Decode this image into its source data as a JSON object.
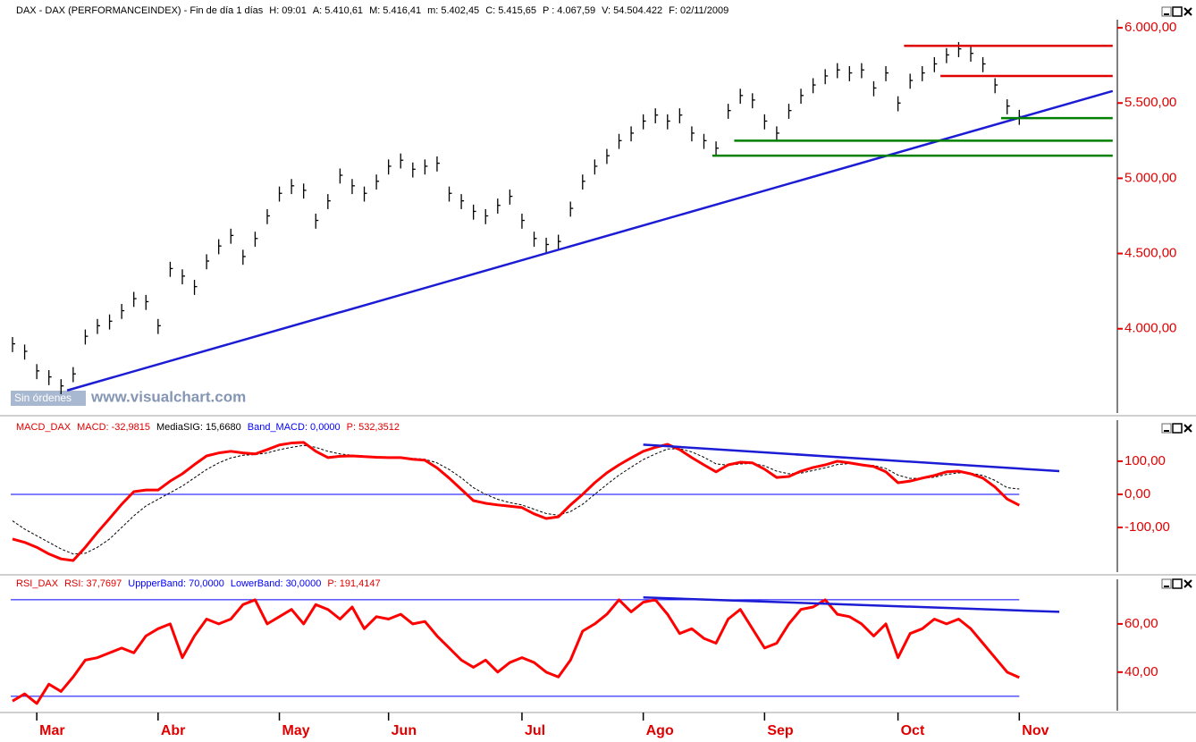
{
  "chart_data": [
    {
      "type": "ohlc",
      "title": "DAX - DAX (PERFORMANCEINDEX) - Fin de día 1 días",
      "title_color": "#000000",
      "fields": [
        {
          "label": "H:",
          "value": "09:01",
          "color": "#000000"
        },
        {
          "label": "A:",
          "value": "5.410,61",
          "color": "#000000"
        },
        {
          "label": "M:",
          "value": "5.416,41",
          "color": "#000000"
        },
        {
          "label": "m:",
          "value": "5.402,45",
          "color": "#000000"
        },
        {
          "label": "C:",
          "value": "5.415,65",
          "color": "#000000"
        },
        {
          "label": "P :",
          "value": "4.067,59",
          "color": "#000000"
        },
        {
          "label": "V:",
          "value": "54.504.422",
          "color": "#000000"
        },
        {
          "label": "F:",
          "value": "02/11/2009",
          "color": "#000000"
        }
      ],
      "categories": [
        null,
        null,
        "Mar",
        null,
        null,
        null,
        null,
        null,
        null,
        null,
        null,
        null,
        "Abr",
        null,
        null,
        null,
        null,
        null,
        null,
        null,
        null,
        null,
        "May",
        null,
        null,
        null,
        null,
        null,
        null,
        null,
        null,
        "Jun",
        null,
        null,
        null,
        null,
        null,
        null,
        null,
        null,
        null,
        null,
        "Jul",
        null,
        null,
        null,
        null,
        null,
        null,
        null,
        null,
        null,
        "Ago",
        null,
        null,
        null,
        null,
        null,
        null,
        null,
        null,
        null,
        "Sep",
        null,
        null,
        null,
        null,
        null,
        null,
        null,
        null,
        null,
        null,
        "Oct",
        null,
        null,
        null,
        null,
        null,
        null,
        null,
        null,
        null,
        "Nov"
      ],
      "high": [
        3945,
        3895,
        3765,
        3725,
        3665,
        3745,
        3995,
        4065,
        4095,
        4165,
        4245,
        4225,
        4065,
        4445,
        4395,
        4325,
        4495,
        4595,
        4665,
        4525,
        4645,
        4795,
        4945,
        4995,
        4965,
        4765,
        4895,
        5065,
        4995,
        4945,
        5025,
        5125,
        5165,
        5105,
        5125,
        5145,
        4945,
        4895,
        4825,
        4795,
        4865,
        4925,
        4765,
        4645,
        4605,
        4625,
        4845,
        5025,
        5125,
        5195,
        5295,
        5345,
        5425,
        5465,
        5425,
        5465,
        5345,
        5295,
        5245,
        5495,
        5595,
        5565,
        5425,
        5345,
        5495,
        5595,
        5665,
        5725,
        5765,
        5745,
        5765,
        5645,
        5745,
        5545,
        5695,
        5745,
        5805,
        5865,
        5905,
        5875,
        5805,
        5665,
        5525,
        5455
      ],
      "low": [
        3845,
        3795,
        3665,
        3625,
        3565,
        3645,
        3895,
        3965,
        3995,
        4065,
        4145,
        4125,
        3965,
        4345,
        4295,
        4225,
        4395,
        4495,
        4565,
        4425,
        4545,
        4695,
        4845,
        4895,
        4865,
        4665,
        4795,
        4965,
        4895,
        4845,
        4925,
        5025,
        5065,
        5005,
        5025,
        5045,
        4845,
        4795,
        4725,
        4695,
        4765,
        4825,
        4665,
        4545,
        4505,
        4525,
        4745,
        4925,
        5025,
        5095,
        5195,
        5245,
        5325,
        5365,
        5325,
        5365,
        5245,
        5195,
        5145,
        5395,
        5495,
        5465,
        5325,
        5245,
        5395,
        5495,
        5565,
        5625,
        5665,
        5645,
        5665,
        5545,
        5645,
        5445,
        5595,
        5645,
        5705,
        5765,
        5805,
        5775,
        5705,
        5565,
        5425,
        5355
      ],
      "close": [
        3900,
        3850,
        3720,
        3680,
        3620,
        3700,
        3950,
        4020,
        4050,
        4120,
        4200,
        4180,
        4020,
        4400,
        4350,
        4280,
        4450,
        4550,
        4620,
        4480,
        4600,
        4750,
        4900,
        4950,
        4920,
        4720,
        4850,
        5020,
        4950,
        4900,
        4980,
        5080,
        5120,
        5060,
        5080,
        5100,
        4900,
        4850,
        4780,
        4750,
        4820,
        4880,
        4720,
        4600,
        4560,
        4580,
        4800,
        4980,
        5080,
        5150,
        5250,
        5300,
        5380,
        5420,
        5380,
        5420,
        5300,
        5250,
        5200,
        5450,
        5550,
        5520,
        5380,
        5300,
        5450,
        5550,
        5620,
        5680,
        5720,
        5700,
        5720,
        5600,
        5700,
        5500,
        5650,
        5700,
        5760,
        5820,
        5860,
        5830,
        5760,
        5620,
        5480,
        5410
      ],
      "color": "#000000",
      "axis_color": "#e00000",
      "ylim": [
        3440,
        6054
      ],
      "yticks": [
        {
          "value": 6000,
          "label": "6.000,00"
        },
        {
          "value": 5500,
          "label": "5.500,00"
        },
        {
          "value": 5000,
          "label": "5.000,00"
        },
        {
          "value": 4500,
          "label": "4.500,00"
        },
        {
          "value": 4000,
          "label": "4.000,00"
        }
      ],
      "lines": [
        {
          "from": [
            4.5,
            3590
          ],
          "to": [
            90.7,
            5580
          ],
          "color": "#1c1cd4"
        },
        {
          "from": [
            73.5,
            5880
          ],
          "to": [
            90.7,
            5880
          ],
          "color": "#e00000"
        },
        {
          "from": [
            76.5,
            5680
          ],
          "to": [
            90.7,
            5680
          ],
          "color": "#e00000"
        },
        {
          "from": [
            81.5,
            5400
          ],
          "to": [
            90.7,
            5400
          ],
          "color": "#008000"
        },
        {
          "from": [
            59.5,
            5250
          ],
          "to": [
            90.7,
            5250
          ],
          "color": "#008000"
        },
        {
          "from": [
            57.7,
            5150
          ],
          "to": [
            90.7,
            5150
          ],
          "color": "#008000"
        }
      ],
      "watermark": [
        "Sin órdenes",
        "www.visualchart.com"
      ]
    },
    {
      "type": "line",
      "title": "MACD_DAX",
      "title_color": "#e00000",
      "fields": [
        {
          "label": "MACD:",
          "value": "-32,9815",
          "color": "#e00000"
        },
        {
          "label": "MediaSIG:",
          "value": "15,6680",
          "color": "#000000"
        },
        {
          "label": "Band_MACD:",
          "value": "0,0000",
          "color": "#0000ff"
        },
        {
          "label": "P:",
          "value": "532,3512",
          "color": "#e00000"
        }
      ],
      "series": [
        {
          "color": "#000000",
          "dashed": true,
          "width": 1,
          "values": [
            -80,
            -105,
            -125,
            -145,
            -165,
            -180,
            -178,
            -160,
            -135,
            -100,
            -65,
            -35,
            -15,
            5,
            25,
            50,
            75,
            95,
            110,
            118,
            120,
            125,
            135,
            142,
            148,
            142,
            130,
            122,
            118,
            116,
            114,
            112,
            111,
            109,
            106,
            95,
            75,
            50,
            20,
            0,
            -15,
            -25,
            -32,
            -45,
            -58,
            -63,
            -52,
            -30,
            0,
            30,
            58,
            82,
            105,
            122,
            137,
            138,
            128,
            112,
            92,
            88,
            92,
            93,
            86,
            70,
            62,
            64,
            72,
            80,
            90,
            93,
            91,
            87,
            78,
            58,
            48,
            48,
            52,
            60,
            65,
            64,
            57,
            42,
            20,
            16
          ]
        },
        {
          "color": "#ff0000",
          "dashed": false,
          "width": 3,
          "values": [
            -135,
            -145,
            -160,
            -180,
            -195,
            -200,
            -160,
            -115,
            -73,
            -30,
            8,
            13,
            13,
            40,
            62,
            90,
            116,
            125,
            130,
            125,
            122,
            135,
            149,
            155,
            157,
            130,
            111,
            115,
            116,
            114,
            112,
            111,
            111,
            106,
            103,
            80,
            49,
            15,
            -19,
            -27,
            -32,
            -36,
            -40,
            -59,
            -73,
            -68,
            -32,
            0,
            35,
            65,
            89,
            110,
            130,
            142,
            151,
            135,
            111,
            89,
            68,
            89,
            97,
            95,
            76,
            51,
            54,
            70,
            81,
            89,
            100,
            95,
            89,
            84,
            68,
            35,
            40,
            49,
            57,
            68,
            70,
            62,
            49,
            22,
            -14,
            -33
          ]
        }
      ],
      "bands": [
        {
          "value": 0,
          "color": "#0000ff"
        }
      ],
      "axis_color": "#e00000",
      "ylim": [
        -235,
        224
      ],
      "yticks": [
        {
          "value": 100,
          "label": "100,00"
        },
        {
          "value": 0,
          "label": "0,00"
        },
        {
          "value": -100,
          "label": "-100,00"
        }
      ],
      "lines": [
        {
          "from": [
            52,
            150
          ],
          "to": [
            86.3,
            70
          ],
          "color": "#1c1cd4"
        }
      ]
    },
    {
      "type": "line",
      "title": "RSI_DAX",
      "title_color": "#e00000",
      "fields": [
        {
          "label": "RSI:",
          "value": "37,7697",
          "color": "#e00000"
        },
        {
          "label": "UppperBand:",
          "value": "70,0000",
          "color": "#0000ff"
        },
        {
          "label": "LowerBand:",
          "value": "30,0000",
          "color": "#0000ff"
        },
        {
          "label": "P:",
          "value": "191,4147",
          "color": "#e00000"
        }
      ],
      "series": [
        {
          "color": "#ff0000",
          "dashed": false,
          "width": 3,
          "values": [
            28,
            31,
            27,
            35,
            32,
            38,
            45,
            46,
            48,
            50,
            48,
            55,
            58,
            60,
            46,
            55,
            62,
            60,
            62,
            68,
            70,
            60,
            63,
            66,
            60,
            68,
            66,
            62,
            67,
            58,
            63,
            62,
            64,
            60,
            61,
            55,
            50,
            45,
            42,
            45,
            40,
            44,
            46,
            44,
            40,
            38,
            45,
            57,
            60,
            64,
            70,
            65,
            69,
            70,
            64,
            56,
            58,
            54,
            52,
            62,
            66,
            58,
            50,
            52,
            60,
            66,
            67,
            70,
            64,
            63,
            60,
            55,
            60,
            46,
            56,
            58,
            62,
            60,
            62,
            58,
            52,
            46,
            40,
            37.77
          ]
        }
      ],
      "bands": [
        {
          "value": 70,
          "color": "#0000ff"
        },
        {
          "value": 30,
          "color": "#0000ff"
        }
      ],
      "axis_color": "#e00000",
      "ylim": [
        24,
        78.5
      ],
      "yticks": [
        {
          "value": 60,
          "label": "60,00"
        },
        {
          "value": 40,
          "label": "40,00"
        }
      ],
      "lines": [
        {
          "from": [
            52,
            71
          ],
          "to": [
            86.3,
            65
          ],
          "color": "#1c1cd4"
        }
      ]
    }
  ]
}
